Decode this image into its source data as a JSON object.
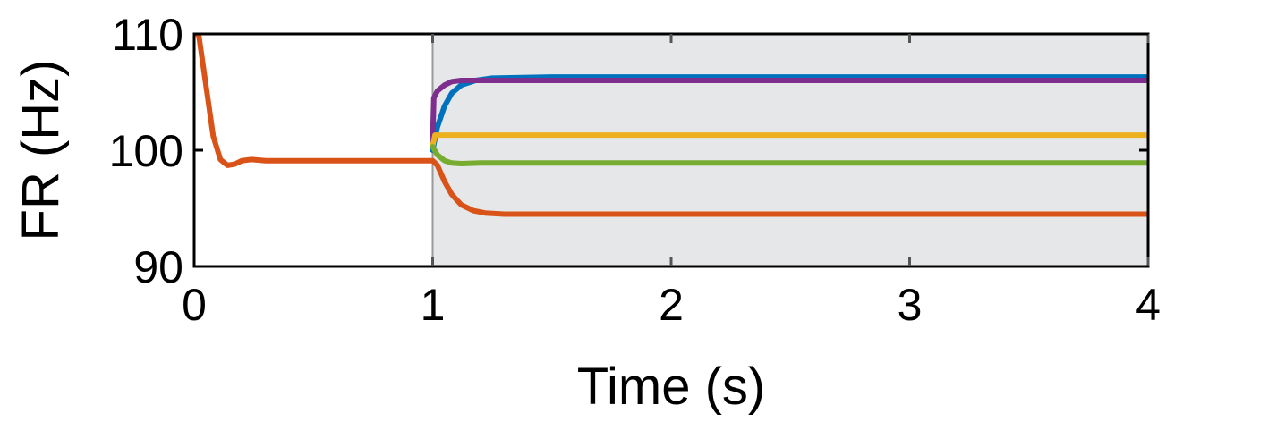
{
  "chart_data": {
    "type": "line",
    "title": "",
    "xlabel": "Time (s)",
    "ylabel": "FR (Hz)",
    "xlim": [
      0,
      4
    ],
    "ylim": [
      90,
      110
    ],
    "xticks": [
      "0",
      "1",
      "2",
      "3",
      "4"
    ],
    "yticks": [
      "90",
      "100",
      "110"
    ],
    "shaded_region": {
      "x_start": 1,
      "x_end": 4,
      "color": "#e6e7e8"
    },
    "grid": false,
    "legend": "none",
    "series": [
      {
        "color": "#0072BD",
        "points": [
          [
            1.0,
            100.0
          ],
          [
            1.02,
            102.0
          ],
          [
            1.05,
            103.8
          ],
          [
            1.08,
            104.9
          ],
          [
            1.12,
            105.6
          ],
          [
            1.18,
            106.0
          ],
          [
            1.25,
            106.2
          ],
          [
            1.5,
            106.3
          ],
          [
            2.0,
            106.3
          ],
          [
            3.0,
            106.3
          ],
          [
            4.0,
            106.3
          ]
        ]
      },
      {
        "color": "#7E2F8E",
        "points": [
          [
            1.0,
            100.8
          ],
          [
            1.005,
            104.5
          ],
          [
            1.02,
            105.1
          ],
          [
            1.05,
            105.6
          ],
          [
            1.08,
            105.9
          ],
          [
            1.12,
            106.0
          ],
          [
            1.2,
            106.0
          ],
          [
            1.5,
            106.0
          ],
          [
            2.0,
            106.0
          ],
          [
            3.0,
            106.0
          ],
          [
            4.0,
            106.0
          ]
        ]
      },
      {
        "color": "#EDB120",
        "points": [
          [
            1.0,
            100.4
          ],
          [
            1.01,
            101.3
          ],
          [
            1.05,
            101.3
          ],
          [
            1.5,
            101.3
          ],
          [
            2.0,
            101.3
          ],
          [
            3.0,
            101.3
          ],
          [
            4.0,
            101.3
          ]
        ]
      },
      {
        "color": "#77AC30",
        "points": [
          [
            1.0,
            100.3
          ],
          [
            1.02,
            99.6
          ],
          [
            1.05,
            99.1
          ],
          [
            1.08,
            98.9
          ],
          [
            1.12,
            98.85
          ],
          [
            1.2,
            98.9
          ],
          [
            1.5,
            98.9
          ],
          [
            2.0,
            98.9
          ],
          [
            3.0,
            98.9
          ],
          [
            4.0,
            98.9
          ]
        ]
      },
      {
        "color": "#D95319",
        "points": [
          [
            0.0,
            110.5
          ],
          [
            0.02,
            109.8
          ],
          [
            0.05,
            105.5
          ],
          [
            0.08,
            101.2
          ],
          [
            0.11,
            99.2
          ],
          [
            0.14,
            98.7
          ],
          [
            0.17,
            98.8
          ],
          [
            0.2,
            99.1
          ],
          [
            0.24,
            99.2
          ],
          [
            0.3,
            99.1
          ],
          [
            0.4,
            99.1
          ],
          [
            0.6,
            99.1
          ],
          [
            0.8,
            99.1
          ],
          [
            1.0,
            99.1
          ],
          [
            1.02,
            98.7
          ],
          [
            1.05,
            97.3
          ],
          [
            1.08,
            96.2
          ],
          [
            1.12,
            95.3
          ],
          [
            1.17,
            94.8
          ],
          [
            1.22,
            94.6
          ],
          [
            1.3,
            94.5
          ],
          [
            1.5,
            94.5
          ],
          [
            2.0,
            94.5
          ],
          [
            3.0,
            94.5
          ],
          [
            4.0,
            94.5
          ]
        ]
      }
    ]
  }
}
